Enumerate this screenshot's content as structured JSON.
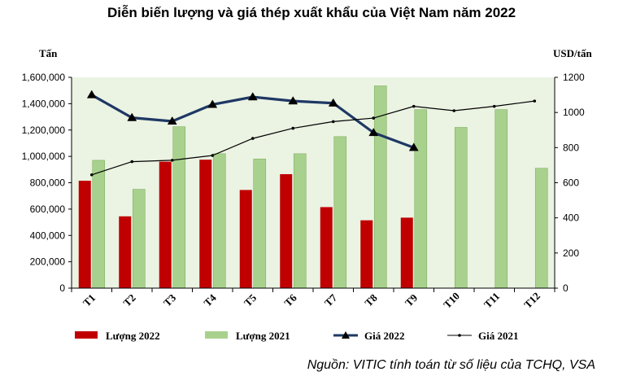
{
  "chart_data": {
    "type": "bar",
    "title": "Diễn biến lượng và giá thép xuất khẩu của Việt Nam năm 2022",
    "categories": [
      "T1",
      "T2",
      "T3",
      "T4",
      "T5",
      "T6",
      "T7",
      "T8",
      "T9",
      "T10",
      "T11",
      "T12"
    ],
    "left_axis": {
      "label": "Tấn",
      "min": 0,
      "max": 1600000,
      "step": 200000,
      "tick_labels": [
        "0",
        "200,000",
        "400,000",
        "600,000",
        "800,000",
        "1,000,000",
        "1,200,000",
        "1,400,000",
        "1,600,000"
      ]
    },
    "right_axis": {
      "label": "USD/tấn",
      "min": 0,
      "max": 1200,
      "step": 200,
      "tick_labels": [
        "0",
        "200",
        "400",
        "600",
        "800",
        "1000",
        "1200"
      ]
    },
    "series": [
      {
        "name": "Lượng 2022",
        "type": "bar",
        "axis": "left",
        "color": "#c00000",
        "values": [
          815000,
          545000,
          960000,
          975000,
          745000,
          865000,
          615000,
          515000,
          535000,
          null,
          null,
          null
        ]
      },
      {
        "name": "Lượng 2021",
        "type": "bar",
        "axis": "left",
        "color": "#a9d18e",
        "values": [
          970000,
          750000,
          1225000,
          1020000,
          980000,
          1020000,
          1150000,
          1535000,
          1355000,
          1220000,
          1355000,
          910000
        ]
      },
      {
        "name": "Giá 2022",
        "type": "line",
        "axis": "right",
        "color": "#1f3864",
        "marker": "triangle",
        "values": [
          1100,
          970,
          950,
          1045,
          1088,
          1065,
          1053,
          885,
          800,
          null,
          null,
          null
        ]
      },
      {
        "name": "Giá 2021",
        "type": "line",
        "axis": "right",
        "color": "#000000",
        "marker": "dot",
        "values": [
          645,
          720,
          728,
          755,
          852,
          910,
          948,
          968,
          1035,
          1010,
          1035,
          1065
        ]
      }
    ],
    "plot_background": "#ebf3e3",
    "legend_position": "bottom",
    "grid": false
  },
  "source_note": "Nguồn: VITIC tính toán từ số liệu của TCHQ, VSA"
}
